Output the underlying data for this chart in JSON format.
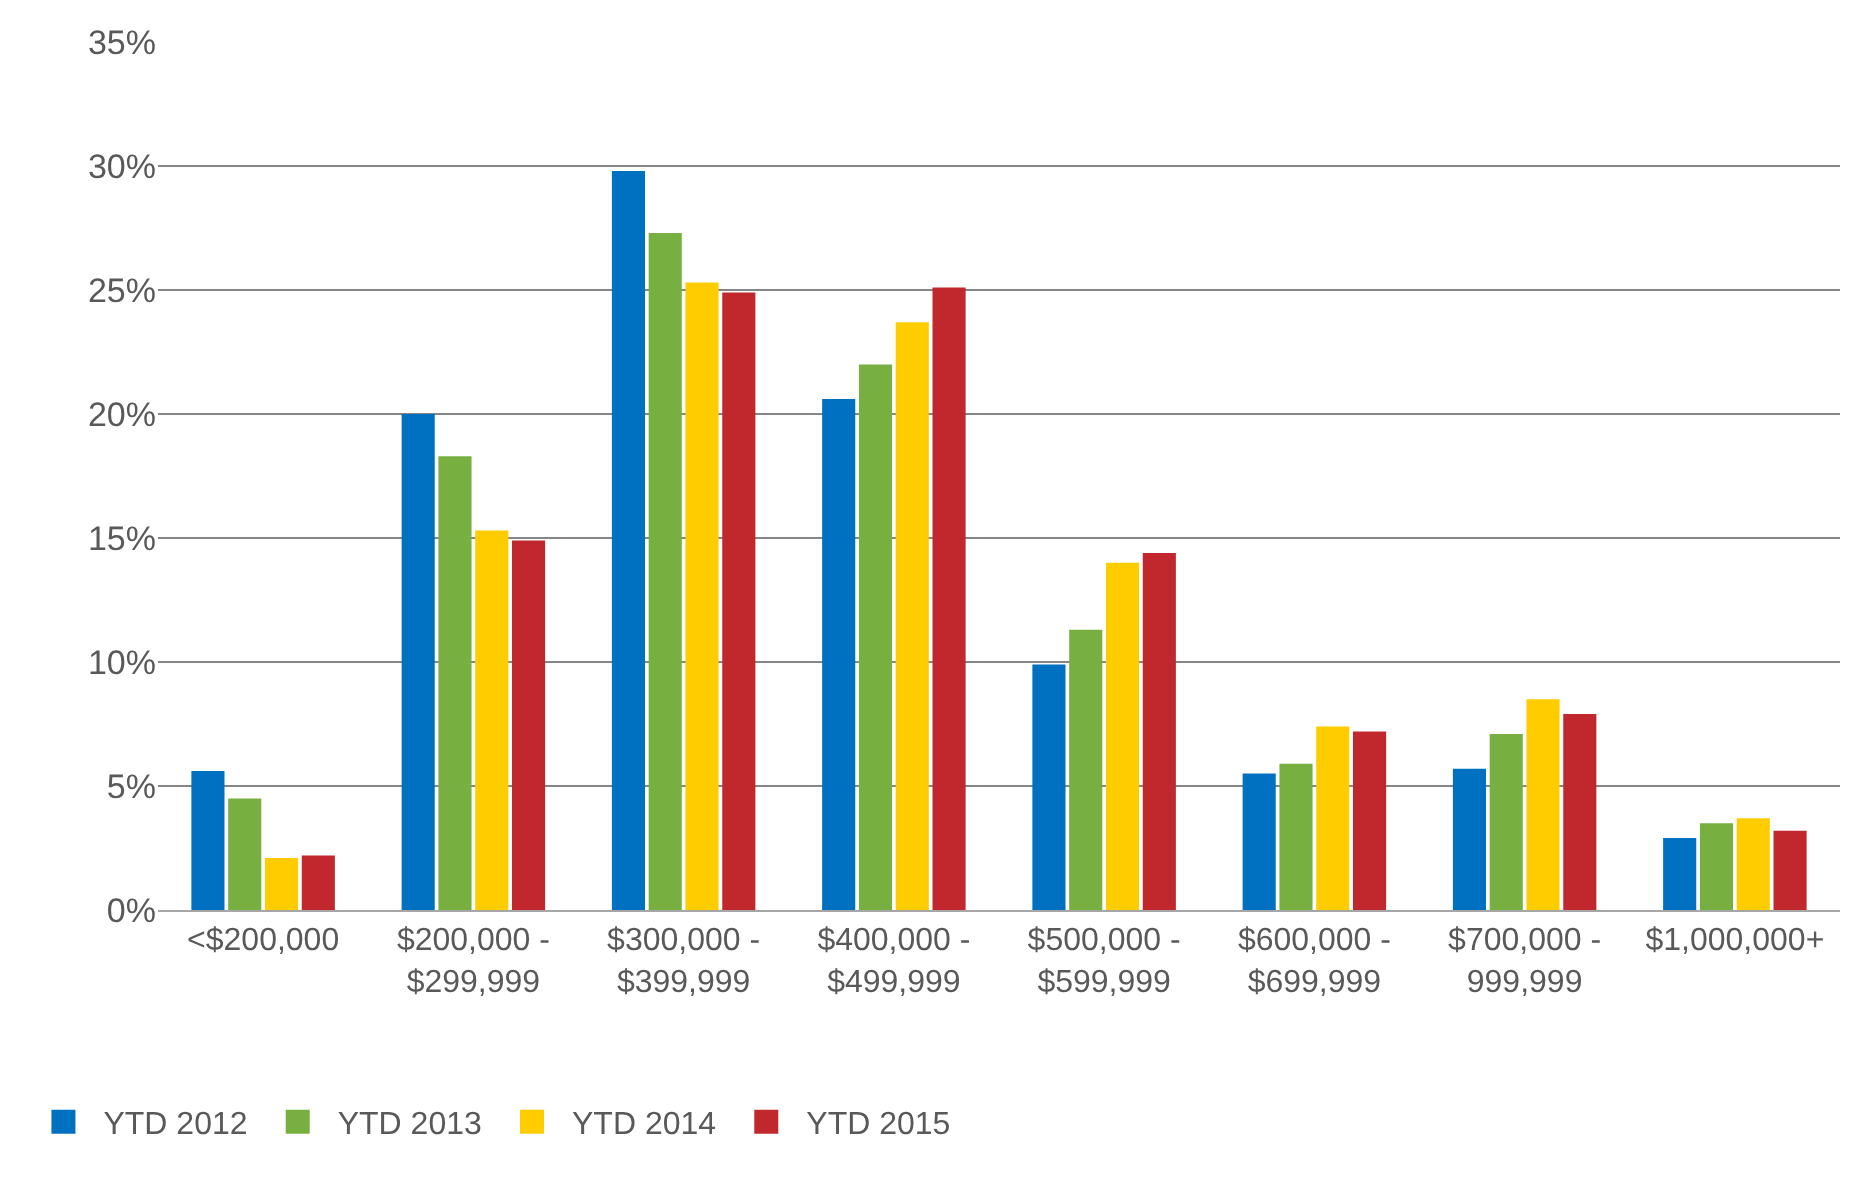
{
  "chart_data": {
    "type": "bar",
    "categories": [
      "<$200,000",
      "$200,000 - $299,999",
      "$300,000 - $399,999",
      "$400,000 - $499,999",
      "$500,000 - $599,999",
      "$600,000 - $699,999",
      "$700,000 - 999,999",
      "$1,000,000+"
    ],
    "series": [
      {
        "name": "YTD 2012",
        "color": "#0070c0",
        "values": [
          5.6,
          20.0,
          29.8,
          20.6,
          9.9,
          5.5,
          5.7,
          2.9
        ]
      },
      {
        "name": "YTD 2013",
        "color": "#77b041",
        "values": [
          4.5,
          18.3,
          27.3,
          22.0,
          11.3,
          5.9,
          7.1,
          3.5
        ]
      },
      {
        "name": "YTD 2014",
        "color": "#ffcc00",
        "values": [
          2.1,
          15.3,
          25.3,
          23.7,
          14.0,
          7.4,
          8.5,
          3.7
        ]
      },
      {
        "name": "YTD 2015",
        "color": "#c0282d",
        "values": [
          2.2,
          14.9,
          24.9,
          25.1,
          14.4,
          7.2,
          7.9,
          3.2
        ]
      }
    ],
    "ylim": [
      0,
      35
    ],
    "yticks": [
      {
        "value": 0,
        "label": "0%"
      },
      {
        "value": 5,
        "label": "5%"
      },
      {
        "value": 10,
        "label": "10%"
      },
      {
        "value": 15,
        "label": "15%"
      },
      {
        "value": 20,
        "label": "20%"
      },
      {
        "value": 25,
        "label": "25%"
      },
      {
        "value": 30,
        "label": "30%"
      },
      {
        "value": 35,
        "label": "35%"
      }
    ],
    "grid": "y",
    "legend": "bottom left"
  }
}
